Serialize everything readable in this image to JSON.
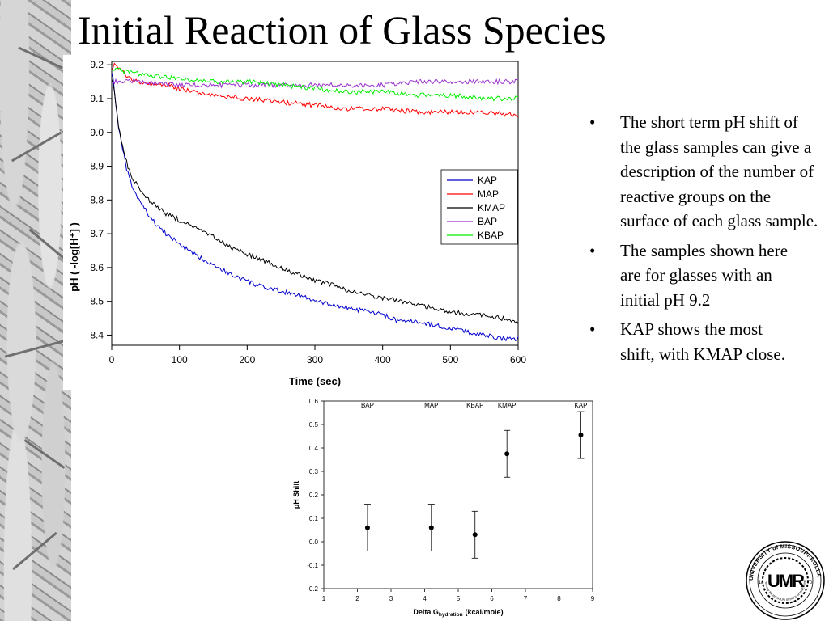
{
  "slide": {
    "title": "Initial Reaction of Glass Species",
    "bullets": [
      "The short term pH shift of the glass samples can give a description of the number of reactive groups on the surface of each glass sample.",
      "The samples shown here are for glasses with an initial pH 9.2",
      "KAP shows the most shift, with KMAP close."
    ],
    "bullet_glyph": "•"
  },
  "seal": {
    "monogram": "UMR",
    "ring_text": "UNIVERSITY of MISSOURI-ROLLA",
    "inner_text": "Formerly the MISSOURI SCHOOL of MINES and METALLURGY",
    "year_left": "18",
    "year_right": "70"
  },
  "chart_data": [
    {
      "type": "line",
      "title": "",
      "xlabel": "Time (sec)",
      "ylabel": "pH ( -log[H⁺] )",
      "xlim": [
        0,
        600
      ],
      "ylim": [
        8.37,
        9.21
      ],
      "xticks": [
        0,
        100,
        200,
        300,
        400,
        500,
        600
      ],
      "yticks": [
        8.4,
        8.5,
        8.6,
        8.7,
        8.8,
        8.9,
        9.0,
        9.1,
        9.2
      ],
      "grid": false,
      "legend": "right",
      "series": [
        {
          "name": "KAP",
          "color": "#0000cc",
          "x": [
            0,
            3,
            6,
            10,
            15,
            20,
            25,
            30,
            40,
            50,
            60,
            80,
            100,
            120,
            150,
            175,
            200,
            225,
            250,
            275,
            300,
            325,
            350,
            375,
            400,
            425,
            450,
            475,
            500,
            525,
            550,
            575,
            600
          ],
          "y": [
            9.18,
            9.15,
            9.08,
            9.02,
            8.96,
            8.91,
            8.87,
            8.84,
            8.8,
            8.77,
            8.74,
            8.7,
            8.67,
            8.64,
            8.61,
            8.58,
            8.56,
            8.54,
            8.53,
            8.52,
            8.5,
            8.49,
            8.48,
            8.47,
            8.46,
            8.44,
            8.44,
            8.43,
            8.42,
            8.41,
            8.4,
            8.39,
            8.39
          ]
        },
        {
          "name": "MAP",
          "color": "#ff0000",
          "x": [
            0,
            5,
            10,
            20,
            40,
            60,
            80,
            100,
            150,
            200,
            250,
            300,
            350,
            400,
            450,
            500,
            550,
            600
          ],
          "y": [
            9.19,
            9.2,
            9.19,
            9.17,
            9.15,
            9.14,
            9.14,
            9.13,
            9.11,
            9.1,
            9.09,
            9.08,
            9.07,
            9.07,
            9.06,
            9.06,
            9.06,
            9.05
          ]
        },
        {
          "name": "KMAP",
          "color": "#000000",
          "x": [
            0,
            3,
            6,
            10,
            15,
            20,
            25,
            30,
            40,
            50,
            60,
            80,
            100,
            120,
            150,
            175,
            200,
            225,
            250,
            275,
            300,
            325,
            350,
            375,
            400,
            425,
            450,
            475,
            500,
            525,
            550,
            575,
            600
          ],
          "y": [
            9.16,
            9.14,
            9.08,
            9.02,
            8.97,
            8.93,
            8.89,
            8.86,
            8.84,
            8.81,
            8.79,
            8.76,
            8.74,
            8.72,
            8.69,
            8.66,
            8.64,
            8.62,
            8.6,
            8.58,
            8.56,
            8.55,
            8.53,
            8.52,
            8.51,
            8.5,
            8.49,
            8.48,
            8.47,
            8.46,
            8.46,
            8.45,
            8.44
          ]
        },
        {
          "name": "BAP",
          "color": "#9933cc",
          "x": [
            0,
            50,
            100,
            150,
            200,
            250,
            300,
            350,
            400,
            450,
            500,
            550,
            600
          ],
          "y": [
            9.15,
            9.15,
            9.14,
            9.14,
            9.14,
            9.14,
            9.14,
            9.14,
            9.14,
            9.15,
            9.15,
            9.15,
            9.15
          ]
        },
        {
          "name": "KBAP",
          "color": "#00ee00",
          "x": [
            0,
            20,
            50,
            100,
            150,
            200,
            250,
            300,
            350,
            400,
            450,
            500,
            550,
            600
          ],
          "y": [
            9.19,
            9.18,
            9.17,
            9.16,
            9.15,
            9.15,
            9.14,
            9.13,
            9.12,
            9.12,
            9.11,
            9.11,
            9.1,
            9.1
          ]
        }
      ]
    },
    {
      "type": "scatter",
      "title": "",
      "xlabel": "Delta G",
      "xlabel_subscript": "hydration",
      "xlabel_units": "(kcal/mole)",
      "ylabel": "pH Shift",
      "xlim": [
        1,
        9
      ],
      "ylim": [
        -0.2,
        0.6
      ],
      "xticks": [
        1,
        2,
        3,
        4,
        5,
        6,
        7,
        8,
        9
      ],
      "yticks": [
        -0.2,
        -0.1,
        0.0,
        0.1,
        0.2,
        0.3,
        0.4,
        0.5,
        0.6
      ],
      "grid": false,
      "error_bar": 0.1,
      "points": [
        {
          "label": "BAP",
          "x": 2.3,
          "y": 0.06
        },
        {
          "label": "MAP",
          "x": 4.2,
          "y": 0.06
        },
        {
          "label": "KBAP",
          "x": 5.5,
          "y": 0.03
        },
        {
          "label": "KMAP",
          "x": 6.45,
          "y": 0.375
        },
        {
          "label": "KAP",
          "x": 8.65,
          "y": 0.455
        }
      ]
    }
  ]
}
